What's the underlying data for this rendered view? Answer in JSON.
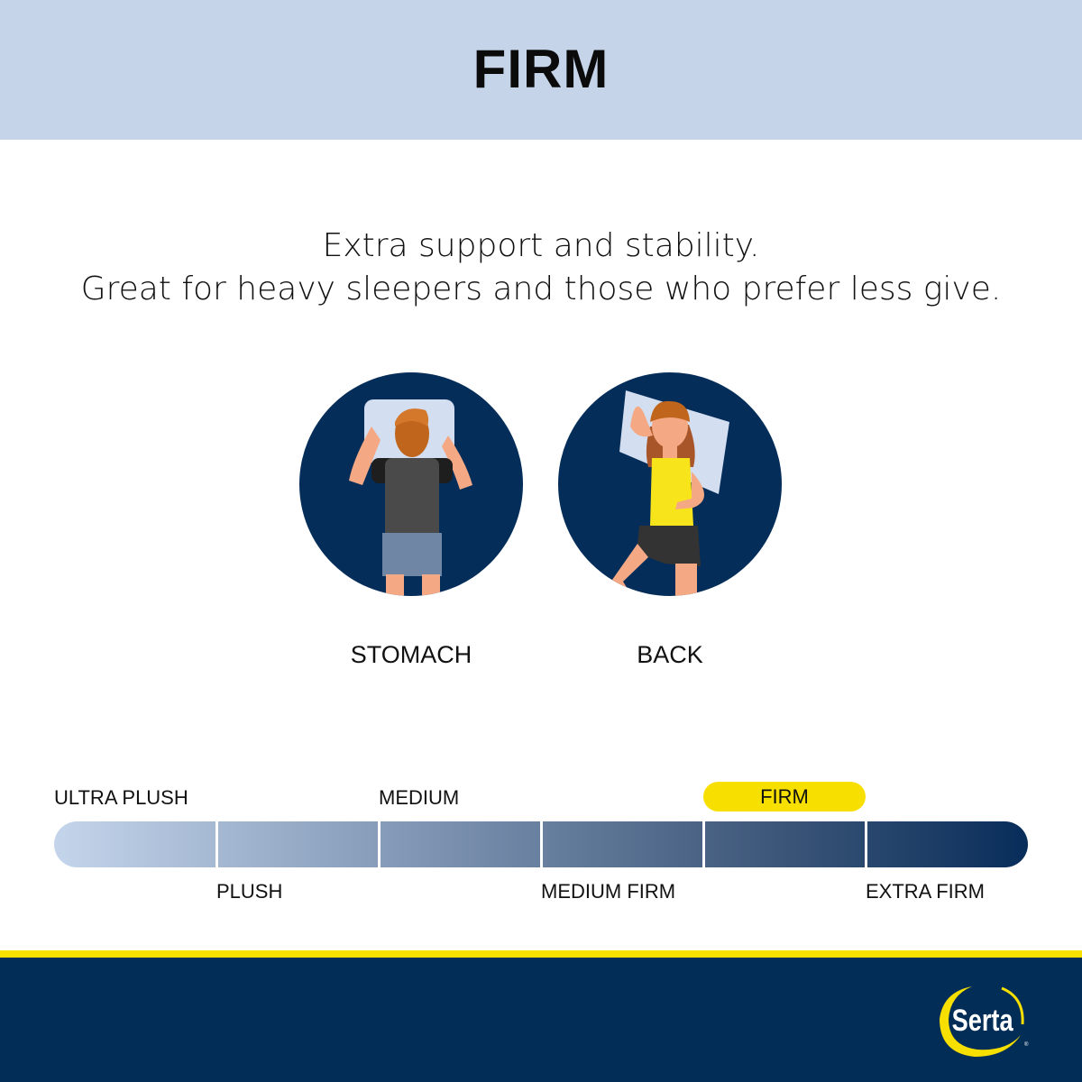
{
  "header": {
    "title": "FIRM"
  },
  "tagline": {
    "line1": "Extra support and stability.",
    "line2": "Great for heavy sleepers and those who prefer less give."
  },
  "positions": [
    {
      "label": "STOMACH",
      "icon": "stomach-sleeper-illustration"
    },
    {
      "label": "BACK",
      "icon": "back-sleeper-illustration"
    }
  ],
  "firmness_scale": {
    "levels": [
      "ULTRA PLUSH",
      "PLUSH",
      "MEDIUM",
      "MEDIUM FIRM",
      "FIRM",
      "EXTRA FIRM"
    ],
    "selected": "FIRM",
    "selected_index": 4
  },
  "brand": {
    "logo_text": "Serta"
  },
  "colors": {
    "header_bg": "#c5d4e9",
    "navy": "#022d56",
    "accent_yellow": "#f7df00"
  }
}
